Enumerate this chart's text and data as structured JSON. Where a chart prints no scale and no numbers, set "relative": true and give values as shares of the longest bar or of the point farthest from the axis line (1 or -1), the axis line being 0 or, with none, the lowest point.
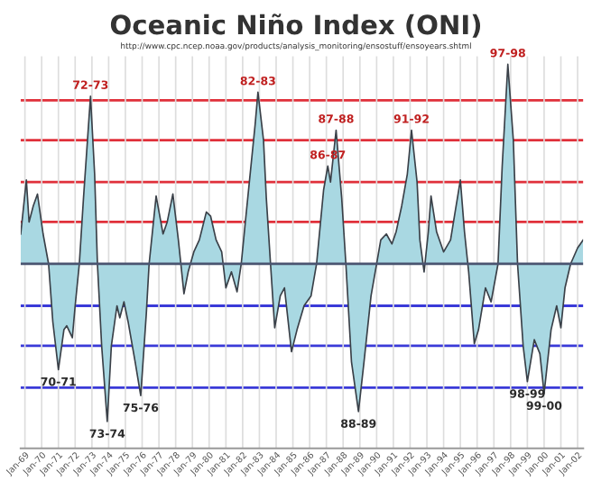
{
  "chart_data": {
    "type": "area",
    "title": "Oceanic Niño Index (ONI)",
    "subtitle": "http://www.cpc.ncep.noaa.gov/products/analysis_monitoring/ensostuff/ensoyears.shtml",
    "relative": true,
    "grid": "x",
    "tick_labels": "x",
    "marker": "none",
    "line_style": "solid",
    "xlim": [
      "1968-10",
      "2002-05"
    ],
    "xticks": [
      {
        "value": "1969-01",
        "label": "Jan-69"
      },
      {
        "value": "1970-01",
        "label": "Jan-70"
      },
      {
        "value": "1971-01",
        "label": "Jan-71"
      },
      {
        "value": "1972-01",
        "label": "Jan-72"
      },
      {
        "value": "1973-01",
        "label": "Jan-73"
      },
      {
        "value": "1974-01",
        "label": "Jan-74"
      },
      {
        "value": "1975-01",
        "label": "Jan-75"
      },
      {
        "value": "1976-01",
        "label": "Jan-76"
      },
      {
        "value": "1977-01",
        "label": "Jan-77"
      },
      {
        "value": "1978-01",
        "label": "Jan-78"
      },
      {
        "value": "1979-01",
        "label": "Jan-79"
      },
      {
        "value": "1980-01",
        "label": "Jan-80"
      },
      {
        "value": "1981-01",
        "label": "Jan-81"
      },
      {
        "value": "1982-01",
        "label": "Jan-82"
      },
      {
        "value": "1983-01",
        "label": "Jan-83"
      },
      {
        "value": "1984-01",
        "label": "Jan-84"
      },
      {
        "value": "1985-01",
        "label": "Jan-85"
      },
      {
        "value": "1986-01",
        "label": "Jan-86"
      },
      {
        "value": "1987-01",
        "label": "Jan-87"
      },
      {
        "value": "1988-01",
        "label": "Jan-88"
      },
      {
        "value": "1989-01",
        "label": "Jan-89"
      },
      {
        "value": "1990-01",
        "label": "Jan-90"
      },
      {
        "value": "1991-01",
        "label": "Jan-91"
      },
      {
        "value": "1992-01",
        "label": "Jan-92"
      },
      {
        "value": "1993-01",
        "label": "Jan-93"
      },
      {
        "value": "1994-01",
        "label": "Jan-94"
      },
      {
        "value": "1995-01",
        "label": "Jan-95"
      },
      {
        "value": "1996-01",
        "label": "Jan-96"
      },
      {
        "value": "1997-01",
        "label": "Jan-97"
      },
      {
        "value": "1998-01",
        "label": "Jan-98"
      },
      {
        "value": "1999-01",
        "label": "Jan-99"
      },
      {
        "value": "2000-01",
        "label": "Jan-00"
      },
      {
        "value": "2001-01",
        "label": "Jan-01"
      },
      {
        "value": "2002-01",
        "label": "Jan-02"
      }
    ],
    "x": [
      "1968-10",
      "1969-02",
      "1969-04",
      "1969-07",
      "1969-10",
      "1970-02",
      "1970-06",
      "1970-09",
      "1971-01",
      "1971-05",
      "1971-07",
      "1971-11",
      "1972-01",
      "1972-04",
      "1972-07",
      "1972-12",
      "1973-03",
      "1973-05",
      "1973-08",
      "1973-12",
      "1974-03",
      "1974-07",
      "1974-09",
      "1974-12",
      "1975-03",
      "1975-08",
      "1975-12",
      "1976-04",
      "1976-06",
      "1976-11",
      "1977-04",
      "1977-07",
      "1977-11",
      "1978-03",
      "1978-07",
      "1978-10",
      "1979-02",
      "1979-06",
      "1979-11",
      "1980-02",
      "1980-06",
      "1980-10",
      "1981-01",
      "1981-05",
      "1981-09",
      "1981-12",
      "1982-03",
      "1982-07",
      "1982-10",
      "1982-12",
      "1983-04",
      "1983-06",
      "1983-09",
      "1983-12",
      "1984-04",
      "1984-07",
      "1984-12",
      "1985-04",
      "1985-09",
      "1986-02",
      "1986-06",
      "1986-11",
      "1987-02",
      "1987-04",
      "1987-08",
      "1987-12",
      "1988-03",
      "1988-07",
      "1988-12",
      "1989-04",
      "1989-09",
      "1990-01",
      "1990-04",
      "1990-08",
      "1990-12",
      "1991-03",
      "1991-07",
      "1991-11",
      "1992-02",
      "1992-06",
      "1992-08",
      "1992-11",
      "1993-02",
      "1993-04",
      "1993-08",
      "1994-01",
      "1994-06",
      "1994-09",
      "1995-01",
      "1995-04",
      "1995-07",
      "1995-11",
      "1996-02",
      "1996-07",
      "1996-11",
      "1997-04",
      "1997-07",
      "1997-11",
      "1998-03",
      "1998-06",
      "1998-10",
      "1999-01",
      "1999-06",
      "1999-10",
      "2000-01",
      "2000-06",
      "2000-10",
      "2001-01",
      "2001-04",
      "2001-08",
      "2002-01",
      "2002-05"
    ],
    "series": [
      {
        "color": "#a9d8e2",
        "values": [
          0.15,
          0.42,
          0.21,
          0.29,
          0.35,
          0.15,
          0,
          -0.29,
          -0.53,
          -0.33,
          -0.31,
          -0.37,
          -0.21,
          0,
          0.33,
          0.84,
          0.45,
          0,
          -0.41,
          -0.79,
          -0.41,
          -0.21,
          -0.27,
          -0.19,
          -0.29,
          -0.49,
          -0.66,
          -0.25,
          0,
          0.34,
          0.15,
          0.21,
          0.35,
          0.12,
          -0.15,
          -0.04,
          0.06,
          0.12,
          0.26,
          0.24,
          0.12,
          0.06,
          -0.12,
          -0.04,
          -0.14,
          0,
          0.21,
          0.49,
          0.7,
          0.86,
          0.62,
          0.33,
          0,
          -0.32,
          -0.16,
          -0.12,
          -0.44,
          -0.33,
          -0.21,
          -0.16,
          0,
          0.37,
          0.49,
          0.41,
          0.67,
          0.33,
          0,
          -0.49,
          -0.74,
          -0.49,
          -0.16,
          0,
          0.12,
          0.15,
          0.1,
          0.16,
          0.29,
          0.45,
          0.67,
          0.41,
          0.12,
          -0.04,
          0.16,
          0.34,
          0.16,
          0.06,
          0.12,
          0.25,
          0.42,
          0.16,
          -0.04,
          -0.4,
          -0.33,
          -0.12,
          -0.19,
          0,
          0.49,
          1,
          0.62,
          0,
          -0.41,
          -0.59,
          -0.38,
          -0.45,
          -0.65,
          -0.33,
          -0.21,
          -0.32,
          -0.12,
          0,
          0.08,
          0.12
        ]
      }
    ],
    "ref_lines": [
      {
        "axis": "y",
        "value": 0,
        "color": "#4a5470"
      },
      {
        "axis": "y",
        "value": 0.21,
        "color": "#e0303a"
      },
      {
        "axis": "y",
        "value": 0.41,
        "color": "#e0303a"
      },
      {
        "axis": "y",
        "value": 0.62,
        "color": "#e0303a"
      },
      {
        "axis": "y",
        "value": 0.82,
        "color": "#e0303a"
      },
      {
        "axis": "y",
        "value": -0.21,
        "color": "#3a3ad8"
      },
      {
        "axis": "y",
        "value": -0.41,
        "color": "#3a3ad8"
      },
      {
        "axis": "y",
        "value": -0.62,
        "color": "#3a3ad8"
      }
    ],
    "annotations": [
      {
        "text": "72-73",
        "x": "1972-12",
        "y": 0.84
      },
      {
        "text": "82-83",
        "x": "1982-12",
        "y": 0.86
      },
      {
        "text": "97-98",
        "x": "1997-11",
        "y": 1
      },
      {
        "text": "86-87",
        "x": "1987-02",
        "y": 0.49
      },
      {
        "text": "87-88",
        "x": "1987-08",
        "y": 0.67
      },
      {
        "text": "91-92",
        "x": "1992-02",
        "y": 0.67
      },
      {
        "text": "70-71",
        "x": "1971-01",
        "y": -0.53
      },
      {
        "text": "73-74",
        "x": "1973-12",
        "y": -0.79
      },
      {
        "text": "75-76",
        "x": "1975-12",
        "y": -0.66
      },
      {
        "text": "88-89",
        "x": "1988-12",
        "y": -0.74
      },
      {
        "text": "98-99",
        "x": "1999-01",
        "y": -0.59
      },
      {
        "text": "99-00",
        "x": "2000-01",
        "y": -0.65
      }
    ]
  }
}
